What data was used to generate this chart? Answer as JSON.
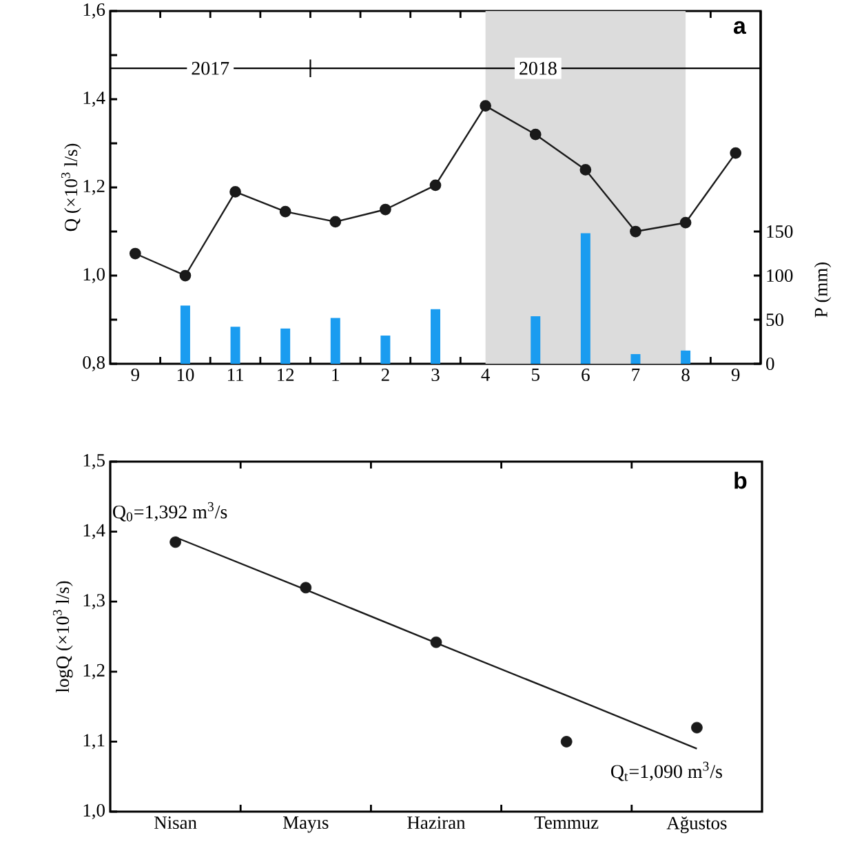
{
  "chart_data": [
    {
      "type": "line",
      "title": "a",
      "ylabel": "Q (×10$^{3}$ l/s)",
      "y2label": "P (mm)",
      "categories": [
        "9",
        "10",
        "11",
        "12",
        "1",
        "2",
        "3",
        "4",
        "5",
        "6",
        "7",
        "8",
        "9"
      ],
      "series": [
        {
          "color": "#1a1a1a",
          "values": [
            1.05,
            1.0,
            1.19,
            1.145,
            1.122,
            1.15,
            1.205,
            1.385,
            1.32,
            1.24,
            1.1,
            1.12,
            1.278
          ]
        },
        {
          "type": "bar",
          "axis": "y2",
          "color": "#1a9cf0",
          "values": [
            null,
            66,
            42,
            40,
            52,
            32,
            62,
            null,
            54,
            148,
            11,
            15,
            null
          ]
        }
      ],
      "ylim": [
        0.8,
        1.6
      ],
      "yticks": [
        {
          "value": 0.8,
          "label": "0,8"
        },
        {
          "value": 0.9,
          "label": null
        },
        {
          "value": 1.0,
          "label": "1,0"
        },
        {
          "value": 1.1,
          "label": null
        },
        {
          "value": 1.2,
          "label": "1,2"
        },
        {
          "value": 1.3,
          "label": null
        },
        {
          "value": 1.4,
          "label": "1,4"
        },
        {
          "value": 1.5,
          "label": null
        },
        {
          "value": 1.6,
          "label": "1,6"
        }
      ],
      "y2lim": [
        0,
        400
      ],
      "y2ticks": [
        0,
        50,
        100,
        150
      ],
      "bands": [
        {
          "axis": "x",
          "from": "4",
          "to": "8",
          "color": "#dcdcdc"
        }
      ],
      "ref_lines": [
        {
          "axis": "y",
          "value": 1.47,
          "color": "#000000"
        }
      ],
      "annotations": [
        "2017",
        "2018"
      ],
      "marker": "circle",
      "line_style": "solid"
    },
    {
      "type": "scatter",
      "title": "b",
      "ylabel": "logQ (×10$^{3}$ l/s)",
      "categories": [
        "Nisan",
        "Mayıs",
        "Haziran",
        "Temmuz",
        "Ağustos"
      ],
      "series": [
        {
          "color": "#1a1a1a",
          "values": [
            1.385,
            1.32,
            1.242,
            1.1,
            1.12
          ]
        },
        {
          "type": "line",
          "color": "#1a1a1a",
          "marker": "none",
          "values": [
            1.392,
            1.317,
            1.241,
            1.166,
            1.09
          ]
        }
      ],
      "ylim": [
        1.0,
        1.5
      ],
      "yticks": [
        {
          "value": 1.0,
          "label": "1,0"
        },
        {
          "value": 1.1,
          "label": "1,1"
        },
        {
          "value": 1.2,
          "label": "1,2"
        },
        {
          "value": 1.3,
          "label": "1,3"
        },
        {
          "value": 1.4,
          "label": "1,4"
        },
        {
          "value": 1.5,
          "label": "1,5"
        }
      ],
      "annotations": [
        {
          "text": "Q$_{0}$=1,392 m$^{3}$/s",
          "x": "Nisan",
          "y": 1.392
        },
        {
          "text": "Q$_{t}$=1,090 m$^{3}$/s",
          "x": "Ağustos",
          "y": 1.09
        }
      ],
      "marker": "circle"
    }
  ]
}
